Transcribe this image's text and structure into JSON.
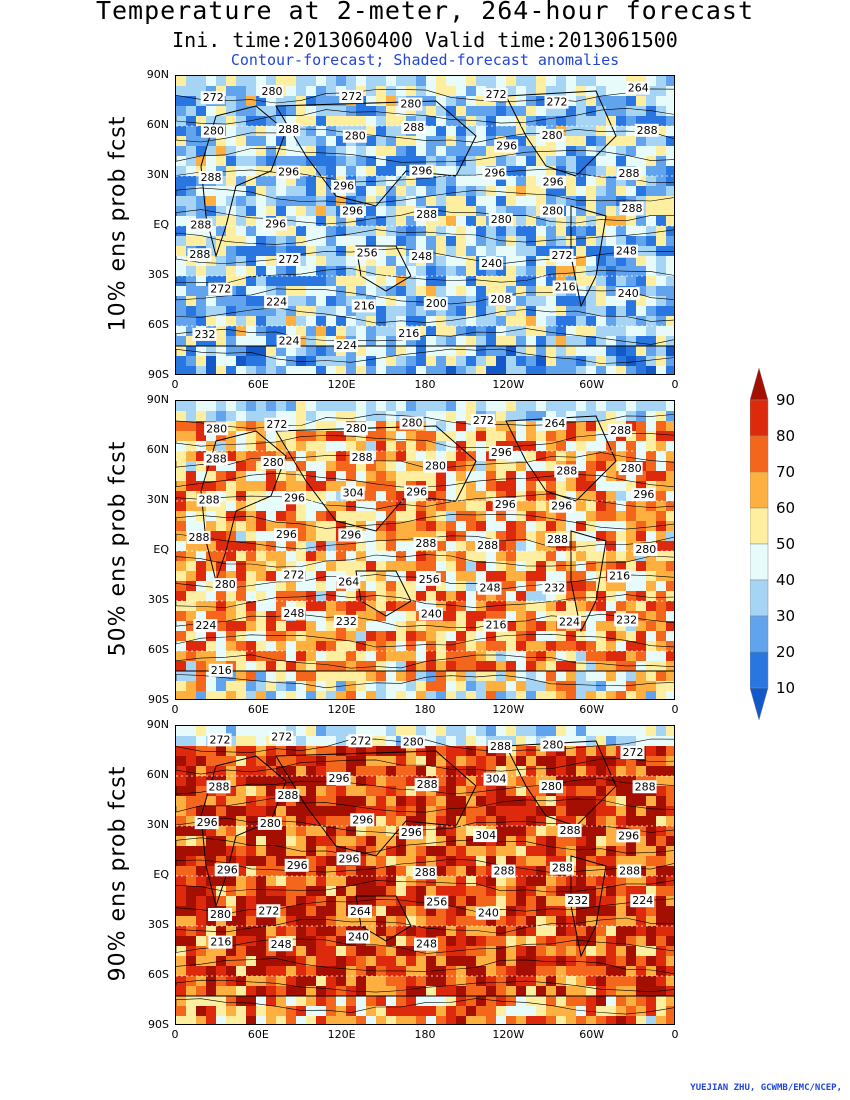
{
  "title": "Temperature at 2-meter, 264-hour forecast",
  "subtitle": "Ini. time:2013060400    Valid time:2013061500",
  "subtitle2": "Contour-forecast; Shaded-forecast anomalies",
  "credit": "YUEJIAN ZHU, GCWMB/EMC/NCEP,",
  "lat_ticks": [
    "90N",
    "60N",
    "30N",
    "EQ",
    "30S",
    "60S",
    "90S"
  ],
  "lon_ticks": [
    "0",
    "60E",
    "120E",
    "180",
    "120W",
    "60W",
    "0"
  ],
  "panels": [
    {
      "label": "10% ens prob fcst",
      "mean_level": 0.35,
      "contour_labels": [
        "272",
        "280",
        "272",
        "280",
        "272",
        "272",
        "264",
        "280",
        "288",
        "280",
        "288",
        "296",
        "280",
        "288",
        "288",
        "296",
        "296",
        "296",
        "296",
        "296",
        "288",
        "288",
        "296",
        "296",
        "288",
        "280",
        "280",
        "288",
        "288",
        "272",
        "256",
        "248",
        "240",
        "272",
        "248",
        "272",
        "224",
        "216",
        "200",
        "208",
        "216",
        "240",
        "232",
        "224",
        "224",
        "216"
      ]
    },
    {
      "label": "50% ens prob fcst",
      "mean_level": 0.65,
      "contour_labels": [
        "280",
        "272",
        "280",
        "280",
        "272",
        "264",
        "288",
        "288",
        "280",
        "288",
        "280",
        "296",
        "288",
        "280",
        "288",
        "296",
        "304",
        "296",
        "296",
        "296",
        "296",
        "288",
        "296",
        "296",
        "288",
        "288",
        "288",
        "280",
        "280",
        "272",
        "264",
        "256",
        "248",
        "232",
        "216",
        "224",
        "248",
        "232",
        "240",
        "216",
        "224",
        "232",
        "216"
      ]
    },
    {
      "label": "90% ens prob fcst",
      "mean_level": 0.85,
      "contour_labels": [
        "272",
        "272",
        "272",
        "280",
        "288",
        "280",
        "272",
        "288",
        "288",
        "296",
        "288",
        "304",
        "280",
        "288",
        "296",
        "280",
        "296",
        "296",
        "304",
        "288",
        "296",
        "296",
        "296",
        "296",
        "288",
        "288",
        "288",
        "288",
        "280",
        "272",
        "264",
        "256",
        "240",
        "232",
        "224",
        "216",
        "248",
        "240",
        "248"
      ]
    }
  ],
  "colorbar": {
    "labels": [
      "90",
      "80",
      "70",
      "60",
      "50",
      "40",
      "30",
      "20",
      "10"
    ],
    "colors": [
      "#a50f02",
      "#dd2a0c",
      "#f4661c",
      "#fdb040",
      "#fdeea0",
      "#e6fbfa",
      "#a6d4f4",
      "#61a3ec",
      "#2a76e0",
      "#1258c8"
    ]
  }
}
